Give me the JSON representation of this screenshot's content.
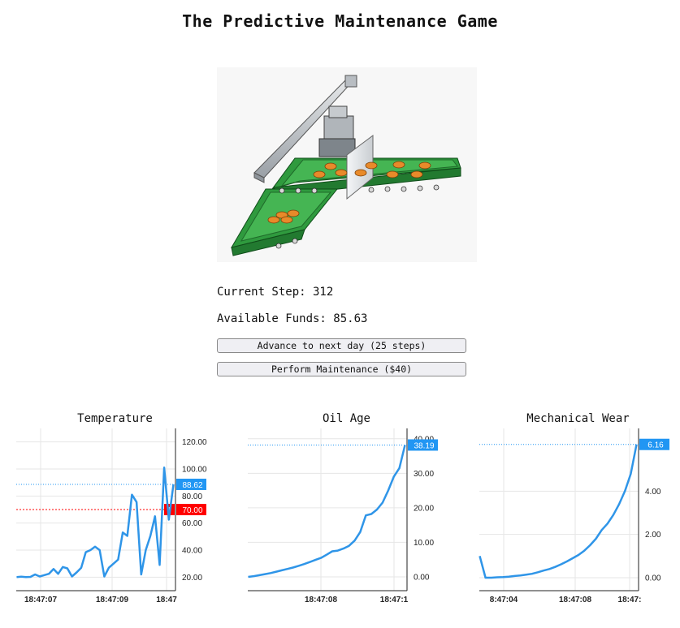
{
  "title": "The Predictive Maintenance Game",
  "status": {
    "step_label": "Current Step: 312",
    "funds_label": "Available Funds: 85.63"
  },
  "buttons": {
    "advance": "Advance to next day (25 steps)",
    "maintenance": "Perform Maintenance ($40)"
  },
  "colors": {
    "line": "#2f95e8",
    "value_tag": "#2196f3",
    "threshold": "#ff0000",
    "grid": "#e6e6e6",
    "conveyor_green": "#3aa64a",
    "product_orange": "#e88a2a"
  },
  "chart_data": [
    {
      "type": "line",
      "title": "Temperature",
      "x_ticks": [
        "18:47:07",
        "18:47:09",
        "18:47"
      ],
      "y_ticks": [
        "120.00",
        "100.00",
        "80.00",
        "60.00",
        "40.00",
        "20.00"
      ],
      "ylim": [
        10,
        130
      ],
      "y_tick_values": [
        120,
        100,
        80,
        60,
        40,
        20
      ],
      "current_value": 88.62,
      "current_label": "88.62",
      "threshold": 70,
      "threshold_label": "70.00",
      "threshold_marker": "!",
      "values": [
        20,
        20.3,
        20.1,
        20.2,
        22,
        20.5,
        21.5,
        22.5,
        26,
        22.5,
        27.5,
        26.5,
        20.5,
        23.5,
        27,
        38.5,
        40,
        42.5,
        40,
        20.5,
        27,
        30,
        33,
        53,
        50.5,
        81,
        75.5,
        22,
        40,
        50.5,
        65,
        29,
        101,
        62.5,
        88.62
      ]
    },
    {
      "type": "line",
      "title": "Oil Age",
      "x_ticks": [
        "18:47:08",
        "18:47:1"
      ],
      "y_ticks": [
        "40.00",
        "30.00",
        "20.00",
        "10.00",
        "0.00"
      ],
      "ylim": [
        -4,
        43
      ],
      "y_tick_values": [
        40,
        30,
        20,
        10,
        0
      ],
      "current_value": 38.19,
      "current_label": "38.19",
      "values": [
        0,
        0.2,
        0.5,
        0.8,
        1.1,
        1.5,
        1.9,
        2.3,
        2.7,
        3.2,
        3.7,
        4.3,
        4.9,
        5.5,
        6.4,
        7.4,
        7.6,
        8.2,
        9.0,
        10.5,
        13.0,
        17.8,
        18.2,
        19.5,
        21.5,
        25.0,
        29.0,
        31.5,
        38.19
      ]
    },
    {
      "type": "line",
      "title": "Mechanical Wear",
      "x_ticks": [
        "8:47:04",
        "18:47:08",
        "18:47:"
      ],
      "y_ticks": [
        "4.00",
        "2.00",
        "0.00"
      ],
      "ylim": [
        -0.6,
        6.9
      ],
      "y_tick_values": [
        4,
        2,
        0
      ],
      "current_value": 6.16,
      "current_label": "6.16",
      "values": [
        1.0,
        0.0,
        0.0,
        0.02,
        0.03,
        0.05,
        0.08,
        0.1,
        0.14,
        0.18,
        0.25,
        0.33,
        0.4,
        0.5,
        0.62,
        0.75,
        0.9,
        1.05,
        1.25,
        1.5,
        1.8,
        2.2,
        2.5,
        2.9,
        3.4,
        4.0,
        4.8,
        6.16
      ]
    }
  ]
}
